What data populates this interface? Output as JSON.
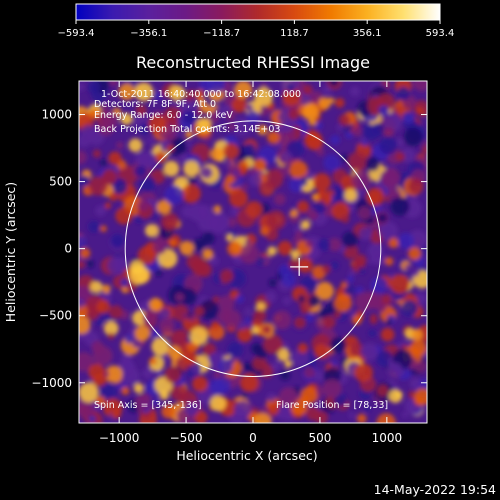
{
  "chart_data": {
    "type": "heatmap",
    "title": "Reconstructed RHESSI Image",
    "xlabel": "Heliocentric X (arcsec)",
    "ylabel": "Heliocentric Y (arcsec)",
    "xlim": [
      -1300,
      1300
    ],
    "ylim": [
      -1300,
      1250
    ],
    "x_ticks": [
      -1000,
      -500,
      0,
      500,
      1000
    ],
    "x_tick_labels": [
      "−1000",
      "−500",
      "0",
      "500",
      "1000"
    ],
    "y_ticks": [
      1000,
      500,
      0,
      -500,
      -1000
    ],
    "y_tick_labels": [
      "1000",
      "500",
      "0",
      "−500",
      "−1000"
    ],
    "colorbar": {
      "range": [
        -593.4,
        593.4
      ],
      "tick_labels": [
        "−593.4",
        "−356.1",
        "−118.7",
        "118.7",
        "356.1",
        "593.4"
      ],
      "colors": [
        "#0000c0",
        "#3a1ab0",
        "#5a209e",
        "#6c1a86",
        "#8a1a5e",
        "#b02a2a",
        "#d84a10",
        "#f07a00",
        "#fbb020",
        "#ffe070",
        "#ffffff"
      ]
    },
    "annotations": {
      "time_range": "1-Oct-2011 16:40:40.000 to 16:42:08.000",
      "detectors": "Detectors: 7F 8F 9F, Att 0",
      "energy": "Energy Range: 6.0 - 12.0 keV",
      "method_total": "Back Projection    Total counts: 3.14E+03",
      "spin_axis": "Spin Axis = [345,-136]",
      "flare_position": "Flare Position = [78,33]"
    },
    "limb_radius_arcsec": 955,
    "spin_axis": [
      345,
      -136
    ]
  },
  "footer": {
    "timestamp": "14-May-2022 19:54"
  }
}
